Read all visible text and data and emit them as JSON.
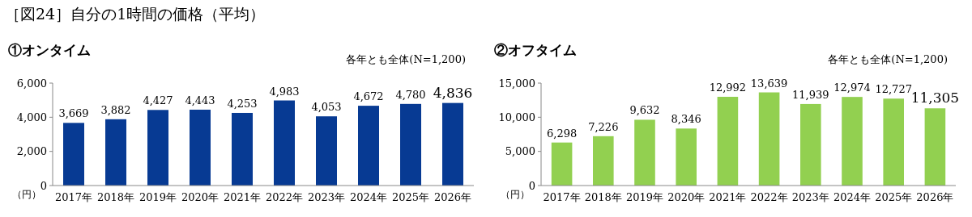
{
  "chart_data": [
    {
      "type": "bar",
      "title": "［図24］自分の1時間の価格（平均）",
      "subtitle": "①オンタイム",
      "ylabel": "（円）",
      "annotations": [
        "各年とも全体(N=1,200)"
      ],
      "categories": [
        "2017年",
        "2018年",
        "2019年",
        "2020年",
        "2021年",
        "2022年",
        "2023年",
        "2024年",
        "2025年",
        "2026年"
      ],
      "values": [
        3669,
        3882,
        4427,
        4443,
        4253,
        4983,
        4053,
        4672,
        4780,
        4836
      ],
      "value_labels": [
        "3,669",
        "3,882",
        "4,427",
        "4,443",
        "4,253",
        "4,983",
        "4,053",
        "4,672",
        "4,780",
        "4,836"
      ],
      "color": "#073a93",
      "ylim": [
        0,
        6000
      ],
      "yticks": [
        0,
        {
          "value": 2000,
          "label": "2,000"
        },
        {
          "value": 4000,
          "label": "4,000"
        },
        {
          "value": 6000,
          "label": "6,000"
        }
      ],
      "grid": false
    },
    {
      "type": "bar",
      "title": "②オフタイム",
      "ylabel": "（円）",
      "annotations": [
        "各年とも全体(N=1,200)"
      ],
      "categories": [
        "2017年",
        "2018年",
        "2019年",
        "2020年",
        "2021年",
        "2022年",
        "2023年",
        "2024年",
        "2025年",
        "2026年"
      ],
      "values": [
        6298,
        7226,
        9632,
        8346,
        12992,
        13639,
        11939,
        12974,
        12727,
        11305
      ],
      "value_labels": [
        "6,298",
        "7,226",
        "9,632",
        "8,346",
        "12,992",
        "13,639",
        "11,939",
        "12,974",
        "12,727",
        "11,305"
      ],
      "color": "#92d050",
      "ylim": [
        0,
        15000
      ],
      "yticks": [
        0,
        {
          "value": 5000,
          "label": "5,000"
        },
        {
          "value": 10000,
          "label": "10,000"
        },
        {
          "value": 15000,
          "label": "15,000"
        }
      ],
      "grid": false
    }
  ]
}
